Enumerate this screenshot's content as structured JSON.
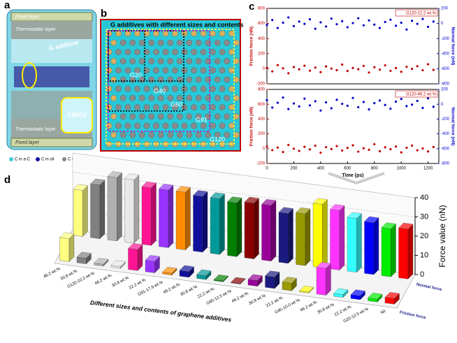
{
  "panel_a": {
    "label": "a",
    "top_layer": "Fixed layer",
    "top_thermo": "Thermostatic layer",
    "additive": "G additive",
    "bottom_thermo": "Thermostatic layer",
    "bottom_layer": "Fixed layer",
    "molecule": "C8H16",
    "legend": [
      "C in a-C",
      "C in oil",
      "C in G",
      "H"
    ]
  },
  "panel_b": {
    "label": "b",
    "title": "G additives with different sizes and contents",
    "regions": [
      "G20",
      "G40",
      "G60",
      "G91",
      "G120"
    ]
  },
  "chart_data": [
    {
      "type": "scatter",
      "panel_label": "c",
      "legend_text": "G120-22.2 wt.%",
      "x": [
        0,
        40,
        80,
        120,
        160,
        200,
        240,
        280,
        320,
        360,
        400,
        440,
        480,
        520,
        560,
        600,
        640,
        680,
        720,
        760,
        800,
        840,
        880,
        920,
        960,
        1000,
        1040,
        1080,
        1120,
        1160,
        1200,
        1240
      ],
      "series": [
        {
          "color": "#c00000",
          "values": [
            12,
            -35,
            48,
            5,
            -60,
            22,
            -8,
            40,
            -25,
            15,
            -45,
            30,
            2,
            -18,
            55,
            -30,
            10,
            -5,
            38,
            -50,
            20,
            -12,
            45,
            -28,
            8,
            -40,
            25,
            -2,
            33,
            -20,
            60,
            -15
          ]
        },
        {
          "color": "#0000cc",
          "axis": "y2",
          "values": [
            -20,
            45,
            -60,
            10,
            80,
            -35,
            25,
            -5,
            55,
            -70,
            15,
            -40,
            65,
            -10,
            30,
            -50,
            5,
            70,
            -25,
            40,
            -15,
            -60,
            20,
            50,
            -30,
            10,
            -80,
            35,
            -5,
            60,
            -45,
            25
          ]
        }
      ],
      "ylabel": "Friction force (nN)",
      "y2label": "Normal force (nN)",
      "xlim": [
        0,
        1280
      ],
      "ylim": [
        -200,
        800
      ],
      "yticks": [
        -200,
        0,
        200,
        400,
        600,
        800
      ],
      "y2lim": [
        -800,
        200
      ],
      "y2ticks": [
        -800,
        -600,
        -400,
        -200,
        0,
        200
      ]
    },
    {
      "type": "scatter",
      "legend_text": "G120-46.2 wt.%",
      "x": [
        0,
        40,
        80,
        120,
        160,
        200,
        240,
        280,
        320,
        360,
        400,
        440,
        480,
        520,
        560,
        600,
        640,
        680,
        720,
        760,
        800,
        840,
        880,
        920,
        960,
        1000,
        1040,
        1080,
        1120,
        1160,
        1200,
        1240
      ],
      "series": [
        {
          "color": "#c00000",
          "values": [
            30,
            -20,
            15,
            -45,
            50,
            0,
            -30,
            25,
            -10,
            40,
            -55,
            20,
            -5,
            35,
            -25,
            10,
            45,
            -40,
            5,
            -15,
            60,
            -35,
            18,
            -8,
            28,
            -50,
            12,
            42,
            -22,
            3,
            -38,
            22
          ]
        },
        {
          "color": "#0000cc",
          "axis": "y2",
          "values": [
            55,
            -45,
            20,
            90,
            -65,
            10,
            -30,
            75,
            -15,
            40,
            -85,
            25,
            -55,
            60,
            5,
            -20,
            85,
            -40,
            30,
            -70,
            15,
            50,
            -10,
            -60,
            35,
            70,
            -25,
            -5,
            45,
            -50,
            80,
            -35
          ]
        }
      ],
      "ylabel": "Friction force (nN)",
      "y2label": "Normal force (nN)",
      "xlabel": "Time (ps)",
      "xlim": [
        0,
        1280
      ],
      "xticks": [
        0,
        200,
        400,
        600,
        800,
        1000,
        1200
      ],
      "ylim": [
        -200,
        800
      ],
      "yticks": [
        -200,
        0,
        200,
        400,
        600,
        800
      ],
      "y2lim": [
        -800,
        200
      ],
      "y2ticks": [
        -800,
        -600,
        -400,
        -200,
        0,
        200
      ]
    },
    {
      "type": "bar3d",
      "panel_label": "d",
      "categories": [
        "46.2 wt.%",
        "30.8 wt.%",
        "G120-22.2 wt.%",
        "46.2 wt.%",
        "30.8 wt.%",
        "22.2 wt.%",
        "G91-17.9 wt.%",
        "46.2 wt.%",
        "30.8 wt.%",
        "22.2 wt.%",
        "G60-12.5 wt.%",
        "46.2 wt.%",
        "30.8 wt.%",
        "22.2 wt.%",
        "G40-10.0 wt.%",
        "46.2 wt.%",
        "30.8 wt.%",
        "22.2 wt.%",
        "G20-12.5 wt.%",
        "Nil"
      ],
      "colors": [
        "#ffff80",
        "#808080",
        "#b0b0b0",
        "#e8e8e8",
        "#ff1493",
        "#9933ff",
        "#ff8c00",
        "#10109a",
        "#009999",
        "#008000",
        "#8b0000",
        "#990099",
        "#1a1a80",
        "#999900",
        "#ffff00",
        "#ff33ff",
        "#33ffff",
        "#0000ff",
        "#00ee00",
        "#ff0000"
      ],
      "series": [
        {
          "name": "Normal force",
          "values": [
            24,
            28,
            33,
            33,
            30,
            30,
            30,
            29,
            29,
            28,
            29,
            29,
            26,
            27,
            33,
            31,
            28,
            27,
            25,
            26
          ]
        },
        {
          "name": "Friction force",
          "values": [
            12,
            3,
            1,
            1,
            11,
            6,
            1,
            3,
            2,
            0.5,
            0.3,
            3,
            6,
            4,
            0.5,
            14,
            1.5,
            2,
            1.5,
            3
          ]
        }
      ],
      "ylim": [
        0,
        40
      ],
      "yticks": [
        0,
        10,
        20,
        30,
        40
      ],
      "ylabel": "Force value (nN)",
      "xlabel": "Different sizes and contents of graphene additives"
    }
  ]
}
